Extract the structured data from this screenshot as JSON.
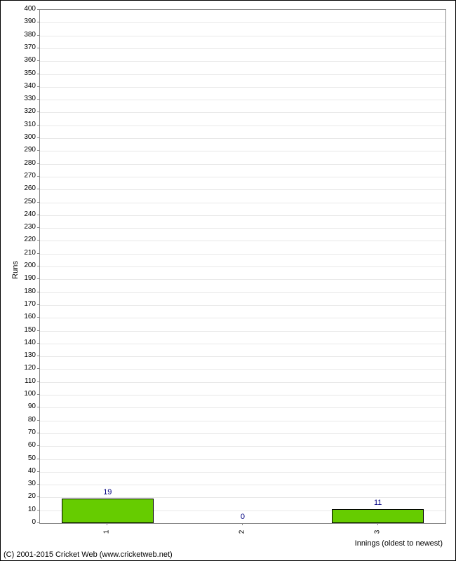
{
  "chart": {
    "type": "bar",
    "ylabel": "Runs",
    "xlabel": "Innings (oldest to newest)",
    "categories": [
      "1",
      "2",
      "3"
    ],
    "values": [
      19,
      0,
      11
    ],
    "value_labels": [
      "19",
      "0",
      "11"
    ],
    "bar_color": "#66cc00",
    "bar_border_color": "#000000",
    "value_label_color": "#000080",
    "background_color": "#ffffff",
    "grid_color": "#e8e8e8",
    "border_color": "#888888",
    "outer_border_color": "#000000",
    "ylim": [
      0,
      400
    ],
    "ytick_step": 10,
    "bar_width_ratio": 0.68,
    "axis_fontsize": 11,
    "tick_fontsize": 10,
    "value_fontsize": 11
  },
  "copyright": "(C) 2001-2015 Cricket Web (www.cricketweb.net)"
}
